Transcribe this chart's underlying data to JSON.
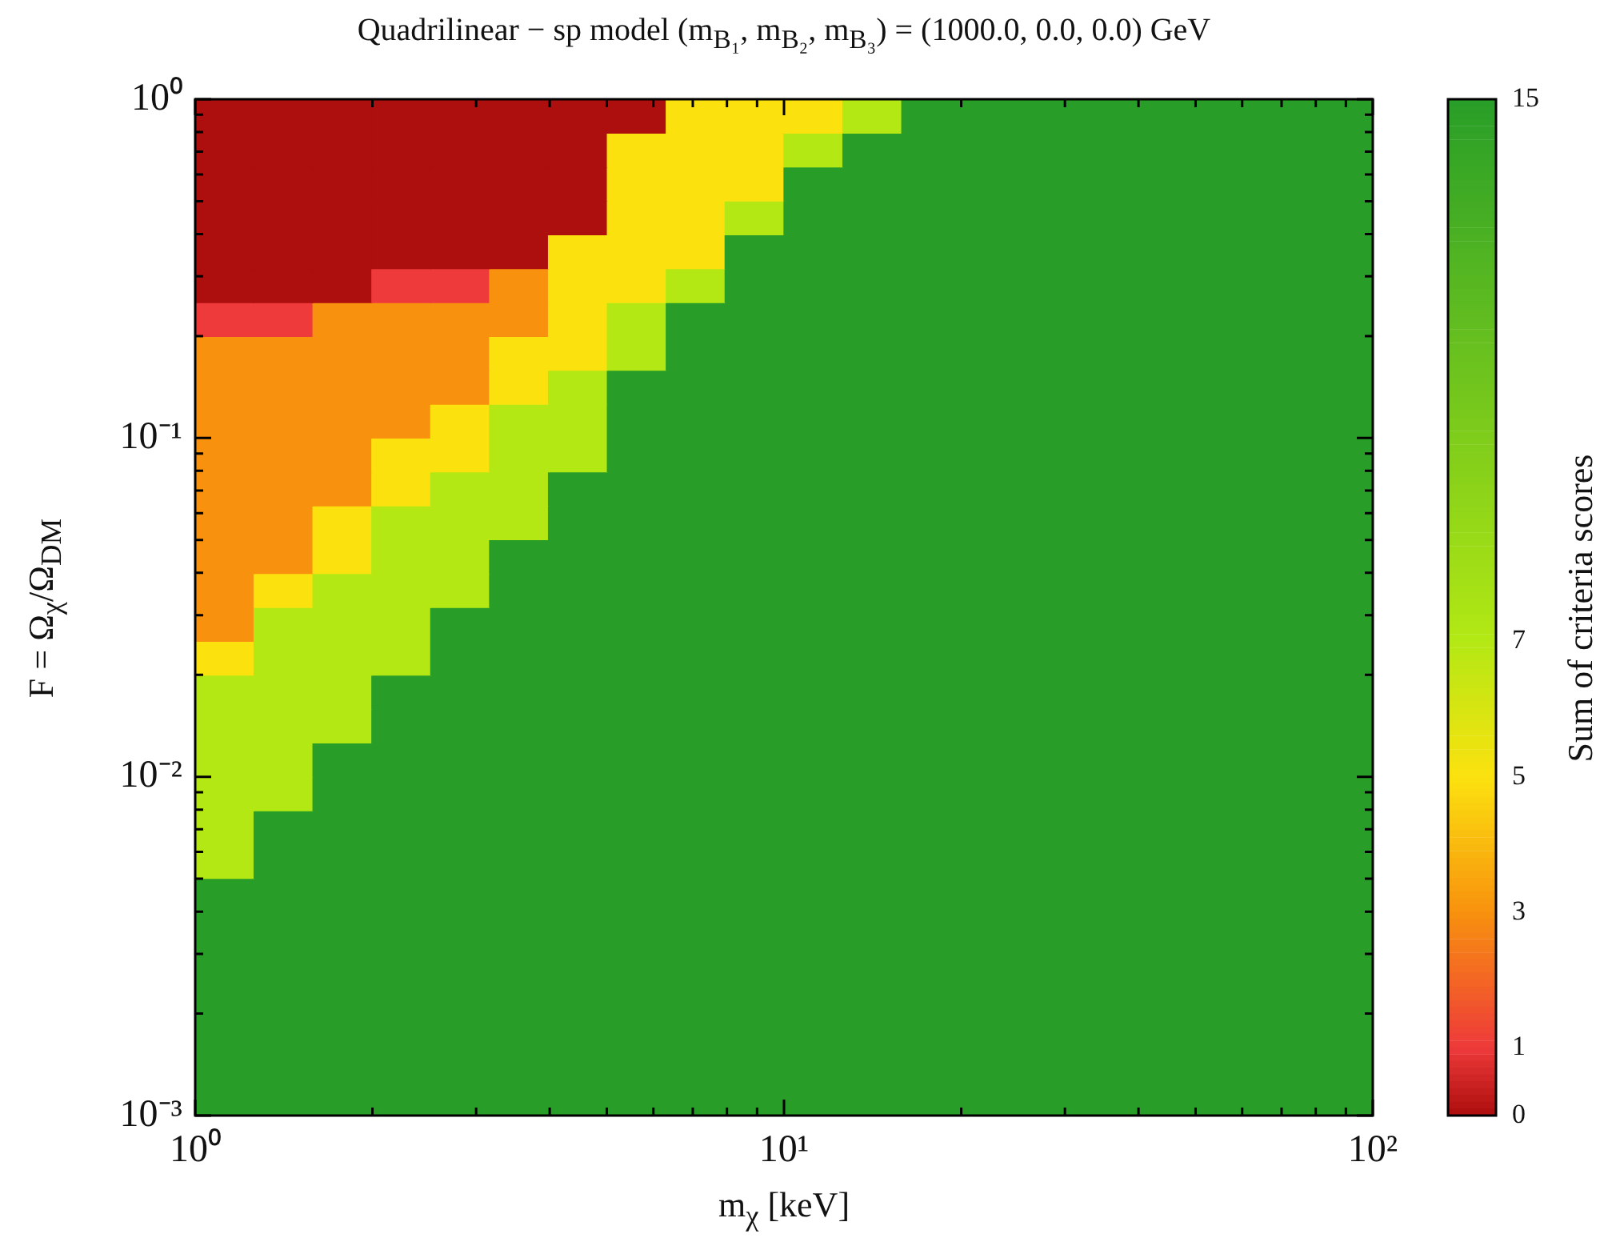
{
  "chart_data": {
    "type": "heatmap",
    "title": "Quadrilinear − sp model (m$_{B₁}$, m$_{B₂}$, m$_{B₃}$) = (1000.0, 0.0, 0.0) GeV",
    "xlabel": "m$_{χ}$ [keV]",
    "ylabel": "F = Ω$_{χ}$/Ω$_{DM}$",
    "clabel": "Sum of criteria scores",
    "log": "xy",
    "xlim": [
      1,
      100
    ],
    "ylim": [
      0.001,
      1
    ],
    "xticks": [
      {
        "value": 1,
        "label": "10⁰"
      },
      {
        "value": 2,
        "label": null
      },
      {
        "value": 3,
        "label": null
      },
      {
        "value": 4,
        "label": null
      },
      {
        "value": 5,
        "label": null
      },
      {
        "value": 6,
        "label": null
      },
      {
        "value": 7,
        "label": null
      },
      {
        "value": 8,
        "label": null
      },
      {
        "value": 9,
        "label": null
      },
      {
        "value": 10,
        "label": "10¹"
      },
      {
        "value": 20,
        "label": null
      },
      {
        "value": 30,
        "label": null
      },
      {
        "value": 40,
        "label": null
      },
      {
        "value": 50,
        "label": null
      },
      {
        "value": 60,
        "label": null
      },
      {
        "value": 70,
        "label": null
      },
      {
        "value": 80,
        "label": null
      },
      {
        "value": 90,
        "label": null
      },
      {
        "value": 100,
        "label": "10²"
      }
    ],
    "yticks": [
      {
        "value": 0.001,
        "label": "10⁻³"
      },
      {
        "value": 0.002,
        "label": null
      },
      {
        "value": 0.003,
        "label": null
      },
      {
        "value": 0.004,
        "label": null
      },
      {
        "value": 0.005,
        "label": null
      },
      {
        "value": 0.006,
        "label": null
      },
      {
        "value": 0.007,
        "label": null
      },
      {
        "value": 0.008,
        "label": null
      },
      {
        "value": 0.009,
        "label": null
      },
      {
        "value": 0.01,
        "label": "10⁻²"
      },
      {
        "value": 0.02,
        "label": null
      },
      {
        "value": 0.03,
        "label": null
      },
      {
        "value": 0.04,
        "label": null
      },
      {
        "value": 0.05,
        "label": null
      },
      {
        "value": 0.06,
        "label": null
      },
      {
        "value": 0.07,
        "label": null
      },
      {
        "value": 0.08,
        "label": null
      },
      {
        "value": 0.09,
        "label": null
      },
      {
        "value": 0.1,
        "label": "10⁻¹"
      },
      {
        "value": 0.2,
        "label": null
      },
      {
        "value": 0.3,
        "label": null
      },
      {
        "value": 0.4,
        "label": null
      },
      {
        "value": 0.5,
        "label": null
      },
      {
        "value": 0.6,
        "label": null
      },
      {
        "value": 0.7,
        "label": null
      },
      {
        "value": 0.8,
        "label": null
      },
      {
        "value": 0.9,
        "label": null
      },
      {
        "value": 1,
        "label": "10⁰"
      }
    ],
    "clim": [
      0,
      15
    ],
    "cticks": [
      0,
      1,
      3,
      5,
      7,
      15
    ],
    "colors": [
      "#ad0e0e",
      "#ee3a3a",
      "#f8920e",
      "#fbe20f",
      "#b3e814",
      "#289e28"
    ],
    "cells": [
      [
        0,
        0,
        0,
        0,
        0,
        0,
        0,
        0,
        5,
        5,
        5,
        7,
        15,
        15,
        15,
        15,
        15,
        15,
        15,
        15
      ],
      [
        0,
        0,
        0,
        0,
        0,
        0,
        0,
        5,
        5,
        5,
        7,
        15,
        15,
        15,
        15,
        15,
        15,
        15,
        15,
        15
      ],
      [
        0,
        0,
        0,
        0,
        0,
        0,
        0,
        5,
        5,
        5,
        15,
        15,
        15,
        15,
        15,
        15,
        15,
        15,
        15,
        15
      ],
      [
        0,
        0,
        0,
        0,
        0,
        0,
        0,
        5,
        5,
        7,
        15,
        15,
        15,
        15,
        15,
        15,
        15,
        15,
        15,
        15
      ],
      [
        0,
        0,
        0,
        0,
        0,
        0,
        5,
        5,
        5,
        15,
        15,
        15,
        15,
        15,
        15,
        15,
        15,
        15,
        15,
        15
      ],
      [
        0,
        0,
        0,
        1,
        1,
        3,
        5,
        5,
        7,
        15,
        15,
        15,
        15,
        15,
        15,
        15,
        15,
        15,
        15,
        15
      ],
      [
        1,
        1,
        3,
        3,
        3,
        3,
        5,
        7,
        15,
        15,
        15,
        15,
        15,
        15,
        15,
        15,
        15,
        15,
        15,
        15
      ],
      [
        3,
        3,
        3,
        3,
        3,
        5,
        5,
        7,
        15,
        15,
        15,
        15,
        15,
        15,
        15,
        15,
        15,
        15,
        15,
        15
      ],
      [
        3,
        3,
        3,
        3,
        3,
        5,
        7,
        15,
        15,
        15,
        15,
        15,
        15,
        15,
        15,
        15,
        15,
        15,
        15,
        15
      ],
      [
        3,
        3,
        3,
        3,
        5,
        7,
        7,
        15,
        15,
        15,
        15,
        15,
        15,
        15,
        15,
        15,
        15,
        15,
        15,
        15
      ],
      [
        3,
        3,
        3,
        5,
        5,
        7,
        7,
        15,
        15,
        15,
        15,
        15,
        15,
        15,
        15,
        15,
        15,
        15,
        15,
        15
      ],
      [
        3,
        3,
        3,
        5,
        7,
        7,
        15,
        15,
        15,
        15,
        15,
        15,
        15,
        15,
        15,
        15,
        15,
        15,
        15,
        15
      ],
      [
        3,
        3,
        5,
        7,
        7,
        7,
        15,
        15,
        15,
        15,
        15,
        15,
        15,
        15,
        15,
        15,
        15,
        15,
        15,
        15
      ],
      [
        3,
        3,
        5,
        7,
        7,
        15,
        15,
        15,
        15,
        15,
        15,
        15,
        15,
        15,
        15,
        15,
        15,
        15,
        15,
        15
      ],
      [
        3,
        5,
        7,
        7,
        7,
        15,
        15,
        15,
        15,
        15,
        15,
        15,
        15,
        15,
        15,
        15,
        15,
        15,
        15,
        15
      ],
      [
        3,
        7,
        7,
        7,
        15,
        15,
        15,
        15,
        15,
        15,
        15,
        15,
        15,
        15,
        15,
        15,
        15,
        15,
        15,
        15
      ],
      [
        5,
        7,
        7,
        7,
        15,
        15,
        15,
        15,
        15,
        15,
        15,
        15,
        15,
        15,
        15,
        15,
        15,
        15,
        15,
        15
      ],
      [
        7,
        7,
        7,
        15,
        15,
        15,
        15,
        15,
        15,
        15,
        15,
        15,
        15,
        15,
        15,
        15,
        15,
        15,
        15,
        15
      ],
      [
        7,
        7,
        7,
        15,
        15,
        15,
        15,
        15,
        15,
        15,
        15,
        15,
        15,
        15,
        15,
        15,
        15,
        15,
        15,
        15
      ],
      [
        7,
        7,
        15,
        15,
        15,
        15,
        15,
        15,
        15,
        15,
        15,
        15,
        15,
        15,
        15,
        15,
        15,
        15,
        15,
        15
      ],
      [
        7,
        7,
        15,
        15,
        15,
        15,
        15,
        15,
        15,
        15,
        15,
        15,
        15,
        15,
        15,
        15,
        15,
        15,
        15,
        15
      ],
      [
        7,
        15,
        15,
        15,
        15,
        15,
        15,
        15,
        15,
        15,
        15,
        15,
        15,
        15,
        15,
        15,
        15,
        15,
        15,
        15
      ],
      [
        7,
        15,
        15,
        15,
        15,
        15,
        15,
        15,
        15,
        15,
        15,
        15,
        15,
        15,
        15,
        15,
        15,
        15,
        15,
        15
      ],
      [
        15,
        15,
        15,
        15,
        15,
        15,
        15,
        15,
        15,
        15,
        15,
        15,
        15,
        15,
        15,
        15,
        15,
        15,
        15,
        15
      ],
      [
        15,
        15,
        15,
        15,
        15,
        15,
        15,
        15,
        15,
        15,
        15,
        15,
        15,
        15,
        15,
        15,
        15,
        15,
        15,
        15
      ],
      [
        15,
        15,
        15,
        15,
        15,
        15,
        15,
        15,
        15,
        15,
        15,
        15,
        15,
        15,
        15,
        15,
        15,
        15,
        15,
        15
      ],
      [
        15,
        15,
        15,
        15,
        15,
        15,
        15,
        15,
        15,
        15,
        15,
        15,
        15,
        15,
        15,
        15,
        15,
        15,
        15,
        15
      ],
      [
        15,
        15,
        15,
        15,
        15,
        15,
        15,
        15,
        15,
        15,
        15,
        15,
        15,
        15,
        15,
        15,
        15,
        15,
        15,
        15
      ],
      [
        15,
        15,
        15,
        15,
        15,
        15,
        15,
        15,
        15,
        15,
        15,
        15,
        15,
        15,
        15,
        15,
        15,
        15,
        15,
        15
      ],
      [
        15,
        15,
        15,
        15,
        15,
        15,
        15,
        15,
        15,
        15,
        15,
        15,
        15,
        15,
        15,
        15,
        15,
        15,
        15,
        15
      ]
    ]
  }
}
